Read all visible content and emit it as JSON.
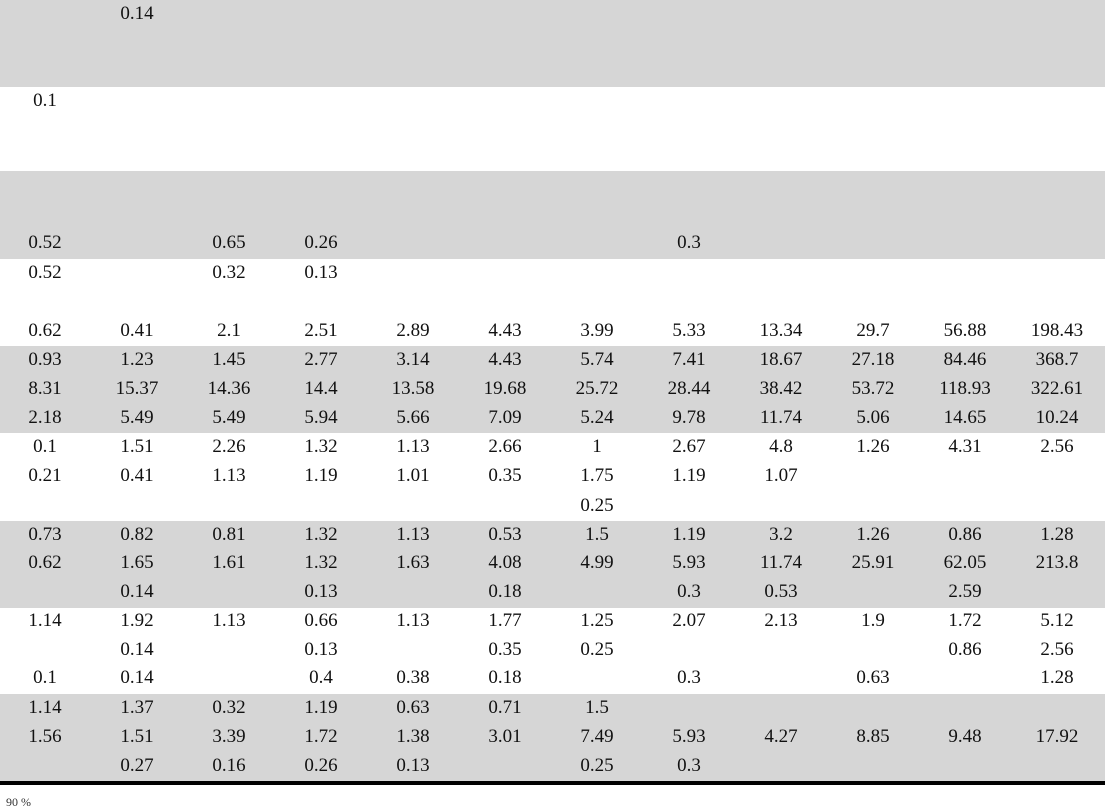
{
  "table": {
    "rows": [
      [
        "",
        "0.14",
        "",
        "",
        "",
        "",
        "",
        "",
        "",
        "",
        "",
        ""
      ],
      [
        "0.1",
        "",
        "",
        "",
        "",
        "",
        "",
        "",
        "",
        "",
        "",
        ""
      ],
      [
        "0.52",
        "",
        "0.65",
        "0.26",
        "",
        "",
        "",
        "0.3",
        "",
        "",
        "",
        ""
      ],
      [
        "0.52",
        "",
        "0.32",
        "0.13",
        "",
        "",
        "",
        "",
        "",
        "",
        "",
        ""
      ],
      [
        "0.62",
        "0.41",
        "2.1",
        "2.51",
        "2.89",
        "4.43",
        "3.99",
        "5.33",
        "13.34",
        "29.7",
        "56.88",
        "198.43"
      ],
      [
        "0.93",
        "1.23",
        "1.45",
        "2.77",
        "3.14",
        "4.43",
        "5.74",
        "7.41",
        "18.67",
        "27.18",
        "84.46",
        "368.7"
      ],
      [
        "8.31",
        "15.37",
        "14.36",
        "14.4",
        "13.58",
        "19.68",
        "25.72",
        "28.44",
        "38.42",
        "53.72",
        "118.93",
        "322.61"
      ],
      [
        "2.18",
        "5.49",
        "5.49",
        "5.94",
        "5.66",
        "7.09",
        "5.24",
        "9.78",
        "11.74",
        "5.06",
        "14.65",
        "10.24"
      ],
      [
        "0.1",
        "1.51",
        "2.26",
        "1.32",
        "1.13",
        "2.66",
        "1",
        "2.67",
        "4.8",
        "1.26",
        "4.31",
        "2.56"
      ],
      [
        "0.21",
        "0.41",
        "1.13",
        "1.19",
        "1.01",
        "0.35",
        "1.75",
        "1.19",
        "1.07",
        "",
        "",
        ""
      ],
      [
        "",
        "",
        "",
        "",
        "",
        "",
        "0.25",
        "",
        "",
        "",
        "",
        ""
      ],
      [
        "0.73",
        "0.82",
        "0.81",
        "1.32",
        "1.13",
        "0.53",
        "1.5",
        "1.19",
        "3.2",
        "1.26",
        "0.86",
        "1.28"
      ],
      [
        "0.62",
        "1.65",
        "1.61",
        "1.32",
        "1.63",
        "4.08",
        "4.99",
        "5.93",
        "11.74",
        "25.91",
        "62.05",
        "213.8"
      ],
      [
        "",
        "0.14",
        "",
        "0.13",
        "",
        "0.18",
        "",
        "0.3",
        "0.53",
        "",
        "2.59",
        ""
      ],
      [
        "1.14",
        "1.92",
        "1.13",
        "0.66",
        "1.13",
        "1.77",
        "1.25",
        "2.07",
        "2.13",
        "1.9",
        "1.72",
        "5.12"
      ],
      [
        "",
        "0.14",
        "",
        "0.13",
        "",
        "0.35",
        "0.25",
        "",
        "",
        "",
        "0.86",
        "2.56"
      ],
      [
        "0.1",
        "0.14",
        "",
        "0.4",
        "0.38",
        "0.18",
        "",
        "0.3",
        "",
        "0.63",
        "",
        "1.28"
      ],
      [
        "1.14",
        "1.37",
        "0.32",
        "1.19",
        "0.63",
        "0.71",
        "1.5",
        "",
        "",
        "",
        "",
        ""
      ],
      [
        "1.56",
        "1.51",
        "3.39",
        "1.72",
        "1.38",
        "3.01",
        "7.49",
        "5.93",
        "4.27",
        "8.85",
        "9.48",
        "17.92"
      ],
      [
        "",
        "0.27",
        "0.16",
        "0.26",
        "0.13",
        "",
        "0.25",
        "0.3",
        "",
        "",
        "",
        ""
      ]
    ]
  },
  "footer_text": "90 %"
}
